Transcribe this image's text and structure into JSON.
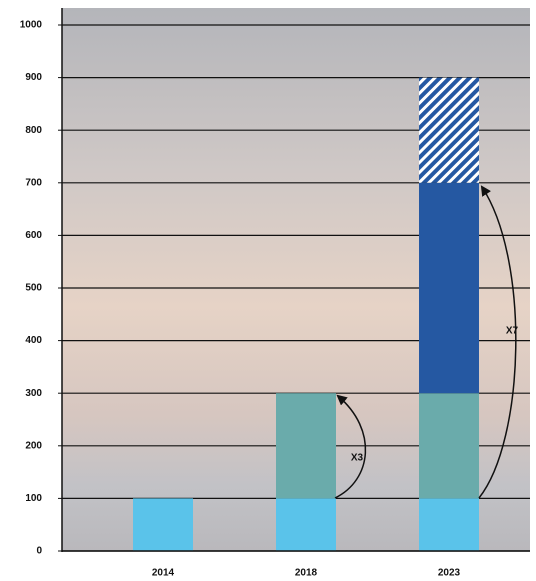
{
  "chart_data": {
    "type": "stacked_bar",
    "categories": [
      "2014",
      "2018",
      "2023"
    ],
    "series": [
      {
        "color": "#5ac3ea",
        "values": [
          100,
          100,
          100
        ]
      },
      {
        "color": "#6aabab",
        "values": [
          null,
          200,
          200
        ]
      },
      {
        "color": "#2558a2",
        "values": [
          null,
          null,
          400
        ]
      },
      {
        "color": "#2558a2",
        "pattern": "hatch",
        "values": [
          null,
          null,
          200
        ]
      }
    ],
    "ylim": [
      0,
      1000
    ],
    "yticks": [
      0,
      100,
      200,
      300,
      400,
      500,
      600,
      700,
      800,
      900,
      1000
    ],
    "grid": true,
    "annotations": [
      "X3",
      "X7"
    ]
  }
}
